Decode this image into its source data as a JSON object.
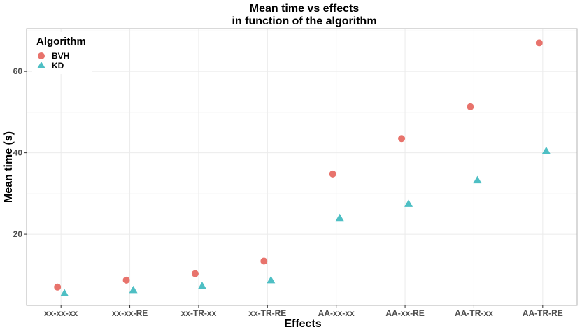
{
  "chart_data": {
    "type": "scatter",
    "title_lines": [
      "Mean time vs effects",
      "in function of the algorithm"
    ],
    "xlabel": "Effects",
    "ylabel": "Mean time (s)",
    "categories": [
      "xx-xx-xx",
      "xx-xx-RE",
      "xx-TR-xx",
      "xx-TR-RE",
      "AA-xx-xx",
      "AA-xx-RE",
      "AA-TR-xx",
      "AA-TR-RE"
    ],
    "ylim": [
      2.5,
      70.5
    ],
    "yticks": [
      20,
      40,
      60
    ],
    "grid": true,
    "legend": {
      "title": "Algorithm",
      "position": "top-left",
      "entries": [
        "BVH",
        "KD"
      ]
    },
    "series": [
      {
        "name": "BVH",
        "marker": "circle",
        "color": "#E8736C",
        "values": [
          7.0,
          8.7,
          10.3,
          13.4,
          34.8,
          43.5,
          51.3,
          67.0
        ]
      },
      {
        "name": "KD",
        "marker": "triangle",
        "color": "#4EBFC4",
        "values": [
          5.5,
          6.3,
          7.3,
          8.7,
          24.0,
          27.5,
          33.3,
          40.5
        ]
      }
    ]
  }
}
